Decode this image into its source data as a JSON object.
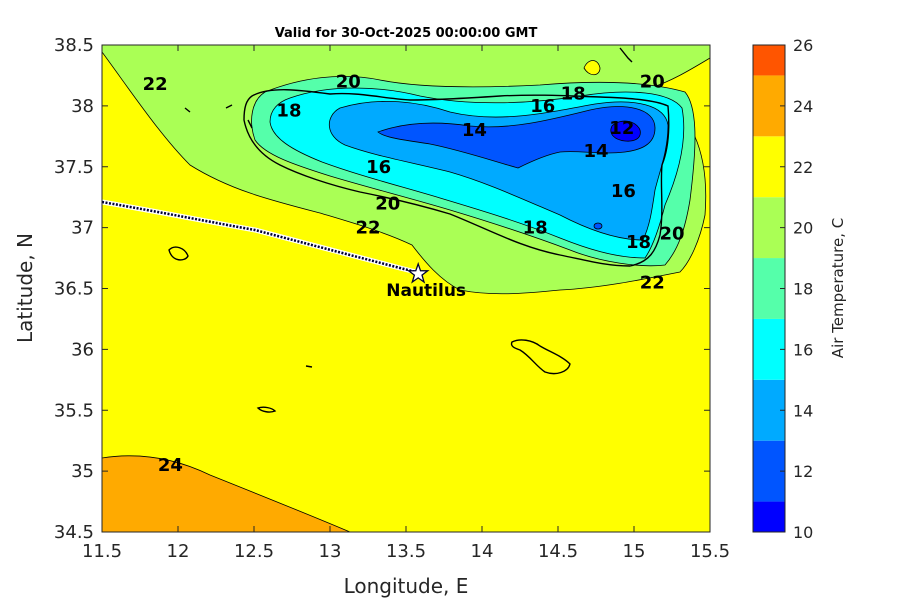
{
  "title": "Valid for 30-Oct-2025 00:00:00 GMT",
  "x_axis": {
    "label": "Longitude, E",
    "range": [
      11.5,
      15.5
    ],
    "ticks": [
      "11.5",
      "12",
      "12.5",
      "13",
      "13.5",
      "14",
      "14.5",
      "15",
      "15.5"
    ]
  },
  "y_axis": {
    "label": "Latitude, N",
    "range": [
      34.5,
      38.5
    ],
    "ticks": [
      "34.5",
      "35",
      "35.5",
      "36",
      "36.5",
      "37",
      "37.5",
      "38",
      "38.5"
    ]
  },
  "colorbar": {
    "label": "Air Temperature, C",
    "ticks": [
      "10",
      "12",
      "14",
      "16",
      "18",
      "20",
      "22",
      "24",
      "26"
    ],
    "levels": [
      {
        "from": 10,
        "to": 11,
        "color": "#0000ff"
      },
      {
        "from": 11,
        "to": 13,
        "color": "#0055ff"
      },
      {
        "from": 13,
        "to": 15,
        "color": "#00aaff"
      },
      {
        "from": 15,
        "to": 17,
        "color": "#00ffff"
      },
      {
        "from": 17,
        "to": 19,
        "color": "#55ffaa"
      },
      {
        "from": 19,
        "to": 21,
        "color": "#aaff55"
      },
      {
        "from": 21,
        "to": 23,
        "color": "#ffff00"
      },
      {
        "from": 23,
        "to": 25,
        "color": "#ffaa00"
      },
      {
        "from": 25,
        "to": 26,
        "color": "#ff5500"
      }
    ]
  },
  "contour_labels": [
    {
      "text": "22",
      "lon": 11.85,
      "lat": 38.18
    },
    {
      "text": "20",
      "lon": 13.12,
      "lat": 38.2
    },
    {
      "text": "20",
      "lon": 15.12,
      "lat": 38.2
    },
    {
      "text": "18",
      "lon": 12.73,
      "lat": 37.96
    },
    {
      "text": "18",
      "lon": 14.6,
      "lat": 38.1
    },
    {
      "text": "16",
      "lon": 14.4,
      "lat": 38.0
    },
    {
      "text": "14",
      "lon": 13.95,
      "lat": 37.8
    },
    {
      "text": "12",
      "lon": 14.92,
      "lat": 37.82
    },
    {
      "text": "14",
      "lon": 14.75,
      "lat": 37.63
    },
    {
      "text": "16",
      "lon": 13.32,
      "lat": 37.5
    },
    {
      "text": "16",
      "lon": 14.93,
      "lat": 37.3
    },
    {
      "text": "20",
      "lon": 13.38,
      "lat": 37.2
    },
    {
      "text": "22",
      "lon": 13.25,
      "lat": 37.0
    },
    {
      "text": "18",
      "lon": 14.35,
      "lat": 37.0
    },
    {
      "text": "18",
      "lon": 15.03,
      "lat": 36.88
    },
    {
      "text": "20",
      "lon": 15.25,
      "lat": 36.95
    },
    {
      "text": "22",
      "lon": 15.12,
      "lat": 36.55
    },
    {
      "text": "24",
      "lon": 11.95,
      "lat": 35.05
    }
  ],
  "marker": {
    "label": "Nautilus",
    "lon": 13.58,
    "lat": 36.62
  }
}
